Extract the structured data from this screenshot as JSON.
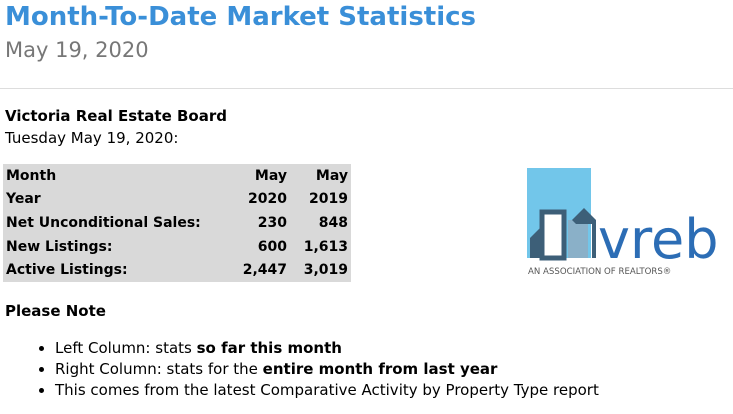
{
  "header": {
    "title": "Month-To-Date Market Statistics",
    "date": "May 19, 2020"
  },
  "board": {
    "name": "Victoria Real Estate Board",
    "date": "Tuesday May 19, 2020:"
  },
  "table": {
    "rows": [
      [
        "Month",
        "May",
        "May"
      ],
      [
        "Year",
        "2020",
        "2019"
      ],
      [
        "Net Unconditional Sales:",
        "230",
        "848"
      ],
      [
        "New Listings:",
        "600",
        "1,613"
      ],
      [
        "Active Listings:",
        "2,447",
        "3,019"
      ]
    ]
  },
  "note": {
    "title": "Please Note",
    "items": [
      [
        "Left Column: stats ",
        "so far this month"
      ],
      [
        "Right Column: stats for the ",
        "entire month from last year"
      ],
      [
        "This comes from the latest Comparative Activity by Property Type report"
      ]
    ]
  },
  "logo": {
    "text": "vreb",
    "tagline": "AN ASSOCIATION OF REALTORS®"
  }
}
